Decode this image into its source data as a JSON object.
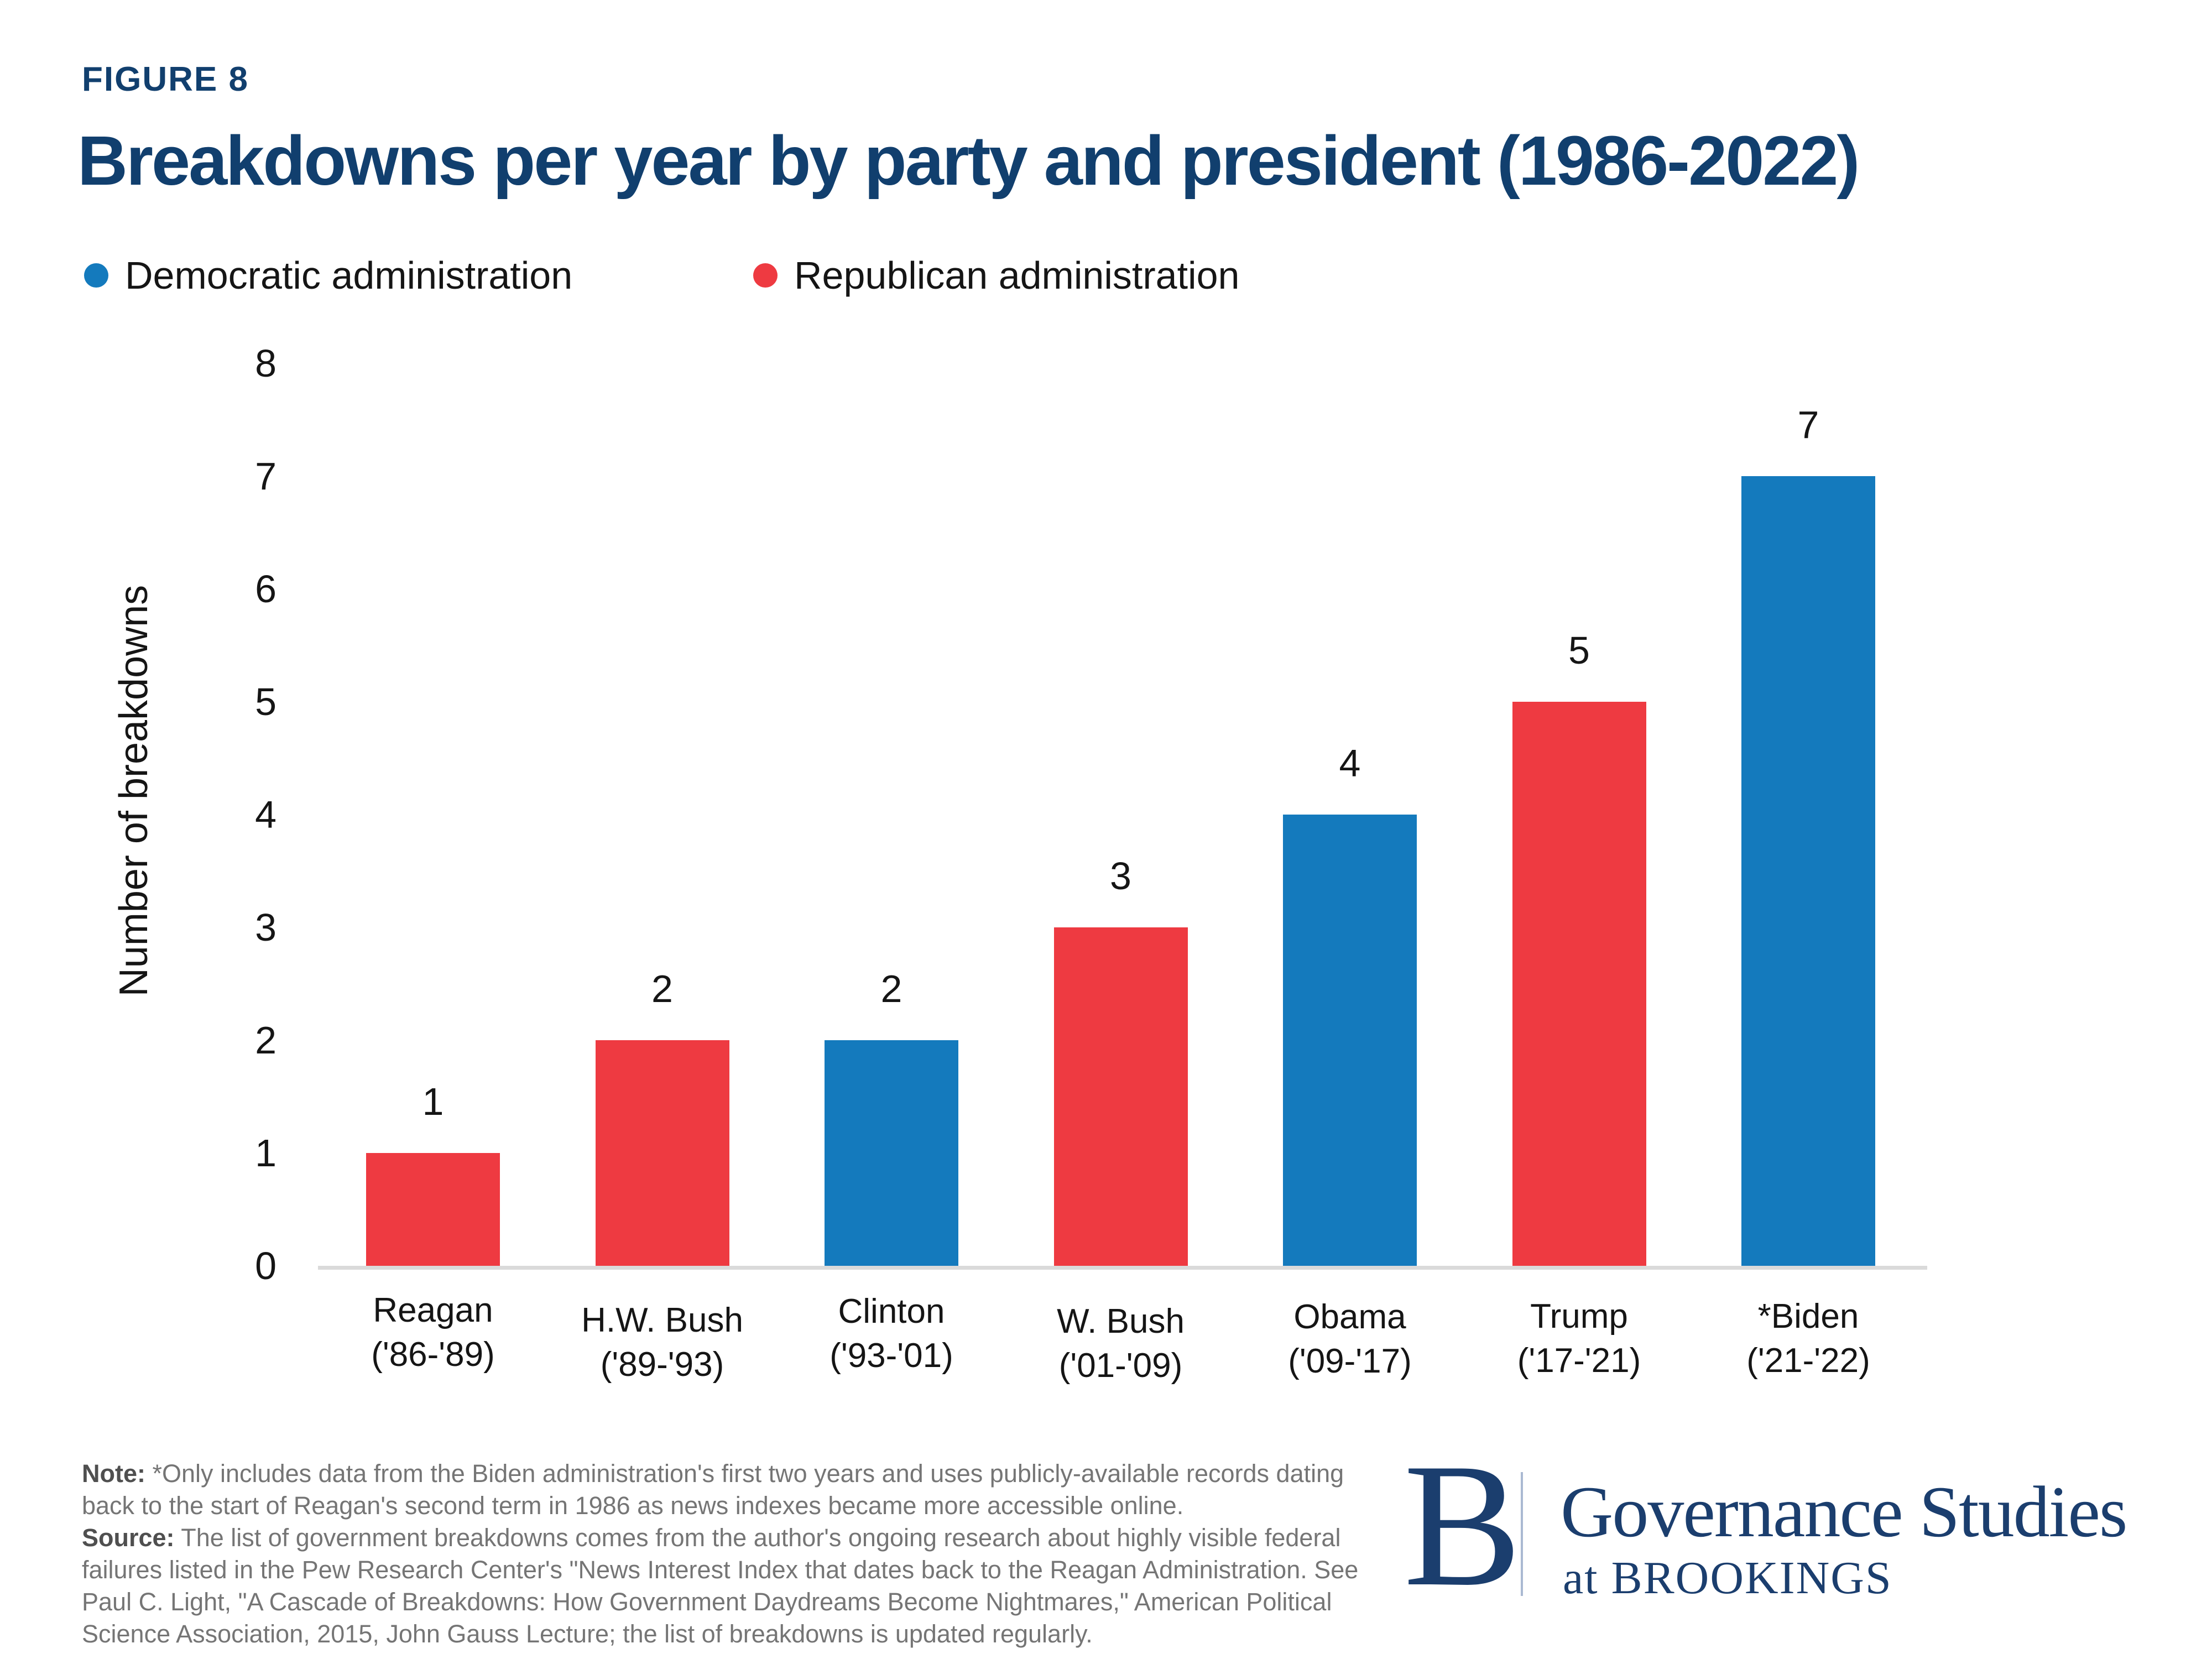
{
  "figure_label": "FIGURE 8",
  "legend": {
    "items": [
      {
        "label": "Democratic administration",
        "color": "#147abd"
      },
      {
        "label": "Republican administration",
        "color": "#ee3a41"
      }
    ]
  },
  "chart_data": {
    "type": "bar",
    "title": "Breakdowns per year by party and president (1986-2022)",
    "categories": [
      "Reagan ('86-'89)",
      "H.W. Bush ('89-'93)",
      "Clinton ('93-'01)",
      "W. Bush ('01-'09)",
      "Obama ('09-'17)",
      "Trump ('17-'21)",
      "*Biden ('21-'22)"
    ],
    "category_names": [
      "Reagan",
      "H.W. Bush",
      "Clinton",
      "W. Bush",
      "Obama",
      "Trump",
      "*Biden"
    ],
    "category_years": [
      "('86-'89)",
      "('89-'93)",
      "('93-'01)",
      "('01-'09)",
      "('09-'17)",
      "('17-'21)",
      "('21-'22)"
    ],
    "values": [
      1,
      2,
      2,
      3,
      4,
      5,
      7
    ],
    "parties": [
      "R",
      "R",
      "D",
      "R",
      "D",
      "R",
      "D"
    ],
    "party_colors": {
      "D": "#147abd",
      "R": "#ee3a41"
    },
    "data_labels": [
      "1",
      "2",
      "2",
      "3",
      "4",
      "5",
      "7"
    ],
    "xlabel": "",
    "ylabel": "Number of breakdowns",
    "ylim": [
      0,
      8
    ],
    "yticks": [
      0,
      1,
      2,
      3,
      4,
      5,
      6,
      7,
      8
    ],
    "grid": false,
    "legend_position": "top-left"
  },
  "note": {
    "lines": [
      {
        "label": "Note:",
        "text": " *Only includes data from the Biden administration's first two years and uses publicly-available records dating"
      },
      {
        "label": "",
        "text": "back to the start of Reagan's second term in 1986 as news indexes became more accessible online."
      },
      {
        "label": "Source:",
        "text": " The list of government breakdowns comes from the author's ongoing research about highly visible federal"
      },
      {
        "label": "",
        "text": "failures listed in the Pew Research Center's \"News Interest Index that dates back to the Reagan Administration. See"
      },
      {
        "label": "",
        "text": "Paul C. Light, \"A Cascade of Breakdowns: How Government Daydreams Become Nightmares,\" American Political"
      },
      {
        "label": "",
        "text": "Science Association, 2015, John Gauss Lecture; the list of breakdowns is updated regularly."
      }
    ]
  },
  "logo": {
    "mark": "B",
    "program": "Governance Studies",
    "sub": "at BROOKINGS"
  }
}
